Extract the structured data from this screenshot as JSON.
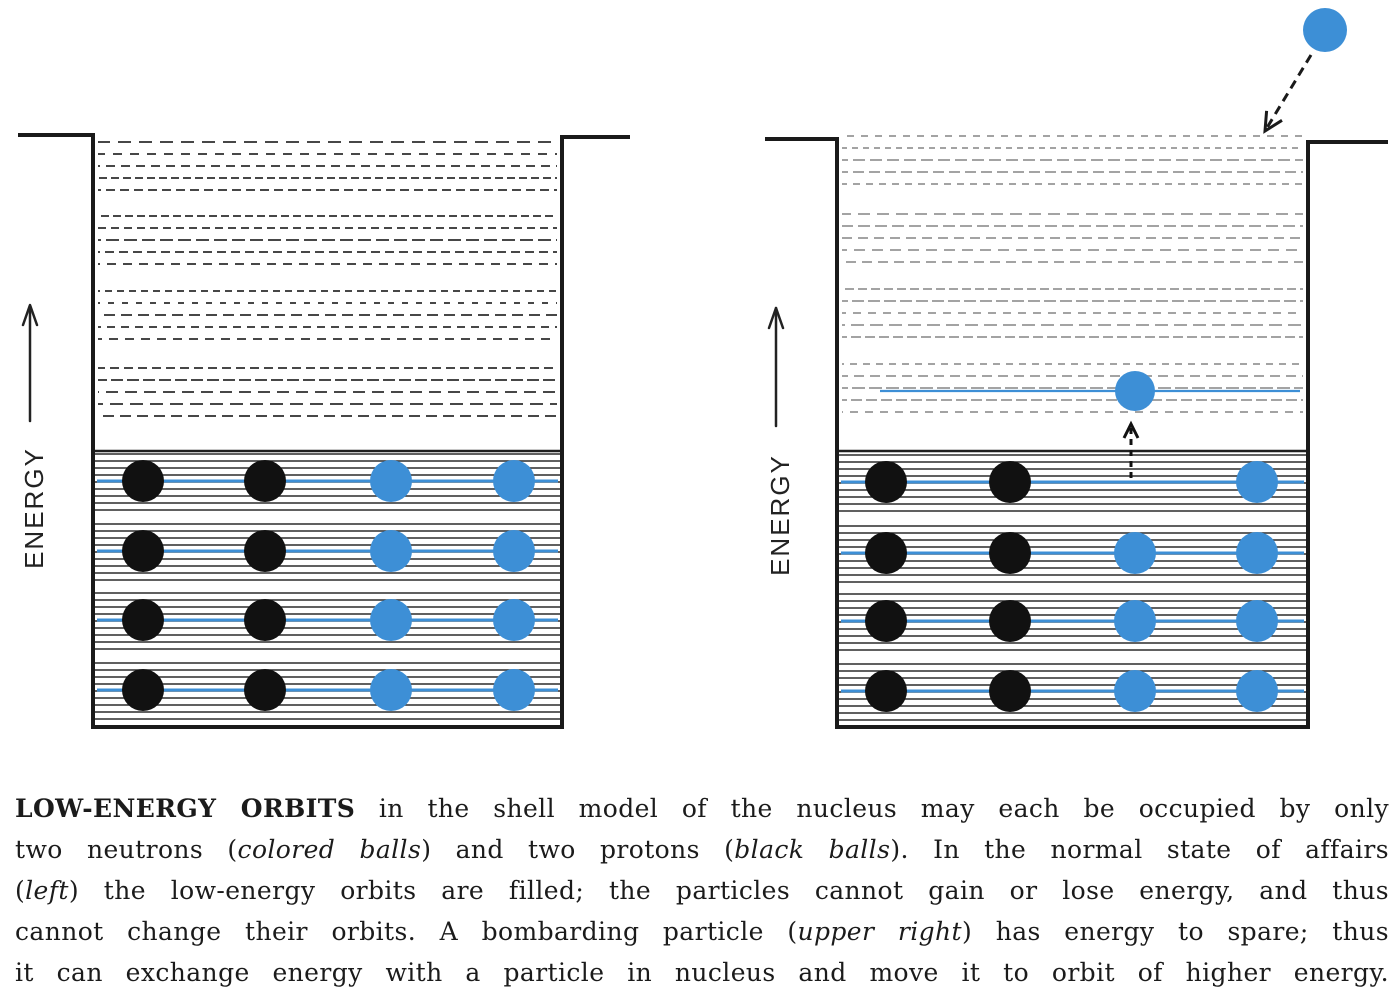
{
  "figure": {
    "colors": {
      "neutron": "#3d8fd6",
      "proton": "#111111"
    },
    "panels": [
      {
        "axis_label": "ENERGY",
        "orbits": [
          {
            "protons": 2,
            "neutrons": 2
          },
          {
            "protons": 2,
            "neutrons": 2
          },
          {
            "protons": 2,
            "neutrons": 2
          },
          {
            "protons": 2,
            "neutrons": 2
          }
        ],
        "excited_neutrons": 0,
        "incoming_particles": 0
      },
      {
        "axis_label": "ENERGY",
        "orbits": [
          {
            "protons": 2,
            "neutrons": 1
          },
          {
            "protons": 2,
            "neutrons": 2
          },
          {
            "protons": 2,
            "neutrons": 2
          },
          {
            "protons": 2,
            "neutrons": 2
          }
        ],
        "excited_neutrons": 1,
        "incoming_particles": 1
      }
    ]
  },
  "caption": {
    "lines": [
      [
        "LOW-ENERGY ORBITS",
        " in the shell model of the nucleus may each be occupied by only"
      ],
      [
        "two neutrons (",
        "colored balls",
        ") and two protons (",
        "black balls",
        "). In the normal state of affairs"
      ],
      [
        "(",
        "left",
        ") the low-energy orbits are filled; the particles cannot gain or lose energy, and thus"
      ],
      [
        "cannot change their orbits. A bombarding particle (",
        "upper right",
        ") has energy to spare; thus"
      ],
      [
        "it can exchange energy with a particle in nucleus and move it to orbit of higher energy."
      ]
    ]
  }
}
